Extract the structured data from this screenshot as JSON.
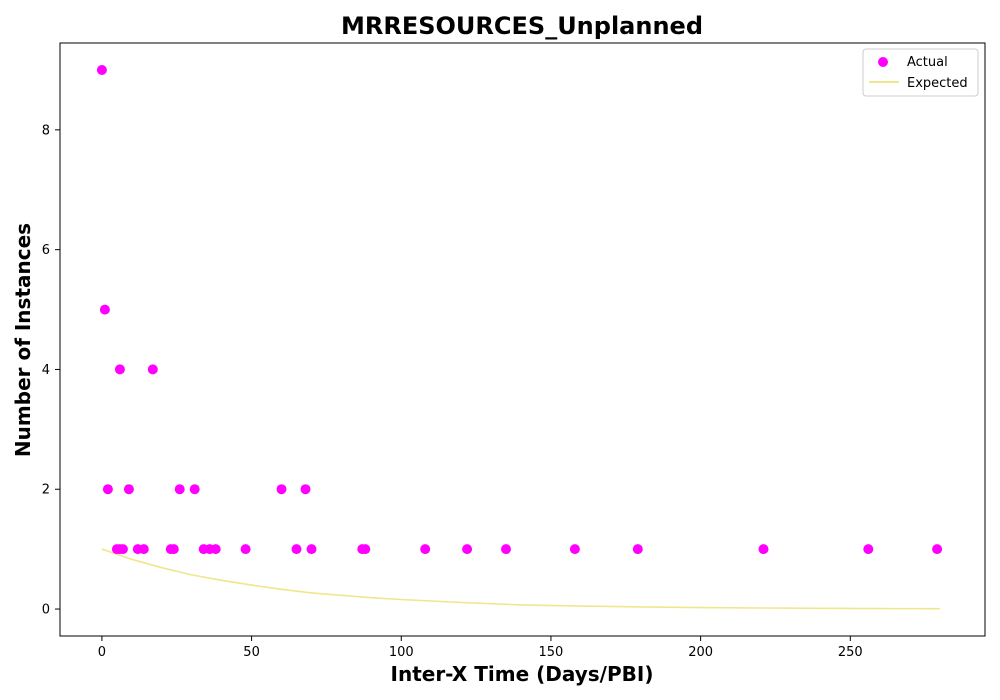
{
  "chart_data": {
    "type": "scatter",
    "title": "MRRESOURCES_Unplanned",
    "xlabel": "Inter-X Time (Days/PBI)",
    "ylabel": "Number of Instances",
    "xlim": [
      -14,
      295
    ],
    "ylim": [
      -0.45,
      9.45
    ],
    "xticks": [
      0,
      50,
      100,
      150,
      200,
      250
    ],
    "yticks": [
      0,
      2,
      4,
      6,
      8
    ],
    "grid": false,
    "legend_position": "top-right",
    "series": [
      {
        "name": "Actual",
        "kind": "scatter",
        "color": "#ff00ff",
        "points": [
          [
            0,
            9
          ],
          [
            1,
            5
          ],
          [
            2,
            2
          ],
          [
            5,
            1
          ],
          [
            6,
            4
          ],
          [
            6,
            1
          ],
          [
            7,
            1
          ],
          [
            9,
            2
          ],
          [
            12,
            1
          ],
          [
            14,
            1
          ],
          [
            17,
            4
          ],
          [
            23,
            1
          ],
          [
            24,
            1
          ],
          [
            26,
            2
          ],
          [
            31,
            2
          ],
          [
            34,
            1
          ],
          [
            36,
            1
          ],
          [
            38,
            1
          ],
          [
            48,
            1
          ],
          [
            60,
            2
          ],
          [
            65,
            1
          ],
          [
            68,
            2
          ],
          [
            70,
            1
          ],
          [
            87,
            1
          ],
          [
            88,
            1
          ],
          [
            108,
            1
          ],
          [
            122,
            1
          ],
          [
            135,
            1
          ],
          [
            158,
            1
          ],
          [
            179,
            1
          ],
          [
            221,
            1
          ],
          [
            256,
            1
          ],
          [
            279,
            1
          ]
        ]
      },
      {
        "name": "Expected",
        "kind": "line",
        "color": "#f0e68c",
        "points": [
          [
            0,
            1.0
          ],
          [
            10,
            0.83
          ],
          [
            20,
            0.69
          ],
          [
            30,
            0.57
          ],
          [
            40,
            0.48
          ],
          [
            50,
            0.4
          ],
          [
            60,
            0.33
          ],
          [
            70,
            0.27
          ],
          [
            80,
            0.23
          ],
          [
            90,
            0.19
          ],
          [
            100,
            0.16
          ],
          [
            120,
            0.11
          ],
          [
            140,
            0.07
          ],
          [
            160,
            0.05
          ],
          [
            180,
            0.035
          ],
          [
            200,
            0.024
          ],
          [
            220,
            0.017
          ],
          [
            240,
            0.012
          ],
          [
            260,
            0.008
          ],
          [
            280,
            0.005
          ]
        ]
      }
    ]
  }
}
